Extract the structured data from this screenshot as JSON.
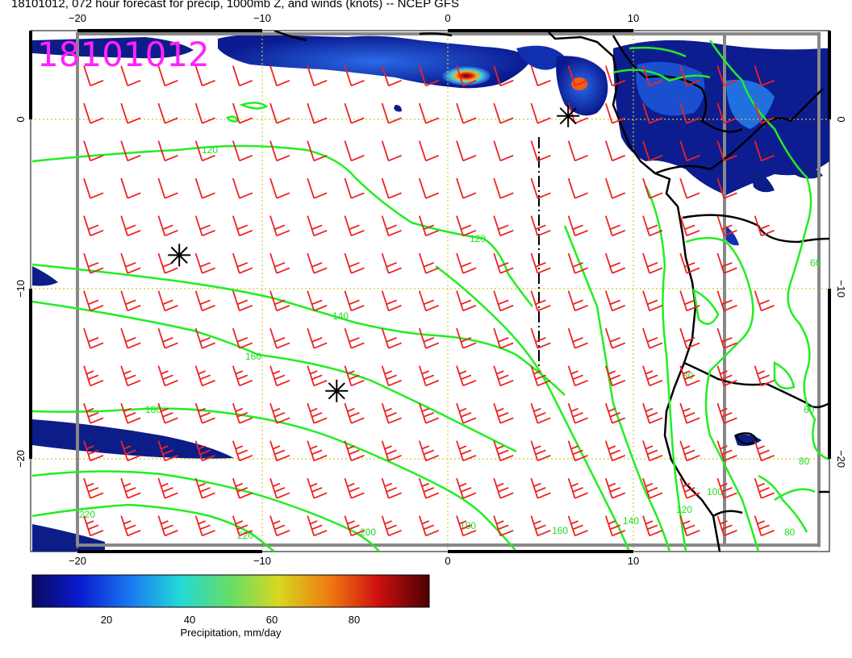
{
  "title": "18101012, 072 hour forecast for precip, 1000mb Z, and winds (knots) -- NCEP GFS",
  "date_stamp": "18101012",
  "colors": {
    "contour": "#22ee22",
    "barb": "#ee2222",
    "grid": "#cccc33",
    "coast": "#000000",
    "stamp": "#ff22ff",
    "precip_low": "#0a1470",
    "precip_high": "#5a0000"
  },
  "axes": {
    "lon_ticks": [
      {
        "value": -20,
        "label": "−20"
      },
      {
        "value": -10,
        "label": "−10"
      },
      {
        "value": 0,
        "label": "0"
      },
      {
        "value": 10,
        "label": "10"
      }
    ],
    "lat_ticks": [
      {
        "value": 0,
        "label": "0"
      },
      {
        "value": -10,
        "label": "−10"
      },
      {
        "value": -20,
        "label": "−20"
      }
    ],
    "lon_range": [
      -22.5,
      20.5
    ],
    "lat_range": [
      -25.5,
      5
    ]
  },
  "chart_data": {
    "type": "map",
    "contour_field": "1000mb geopotential height",
    "contour_levels": [
      {
        "value": 60,
        "label": "60"
      },
      {
        "value": 80,
        "label": "80"
      },
      {
        "value": 100,
        "label": "100"
      },
      {
        "value": 120,
        "label": "120"
      },
      {
        "value": 140,
        "label": "140"
      },
      {
        "value": 160,
        "label": "160"
      },
      {
        "value": 180,
        "label": "180"
      },
      {
        "value": 200,
        "label": "200"
      },
      {
        "value": 220,
        "label": "220"
      }
    ],
    "colorbar": {
      "label": "Precipitation, mm/day",
      "ticks": [
        {
          "value": 20,
          "label": "20"
        },
        {
          "value": 40,
          "label": "40"
        },
        {
          "value": 60,
          "label": "60"
        },
        {
          "value": 80,
          "label": "80"
        }
      ],
      "range": [
        0,
        100
      ]
    },
    "markers": [
      {
        "lon": -14.5,
        "lat": -8
      },
      {
        "lon": -6,
        "lat": -16
      },
      {
        "lon": 6.5,
        "lat": 0.2
      }
    ]
  }
}
